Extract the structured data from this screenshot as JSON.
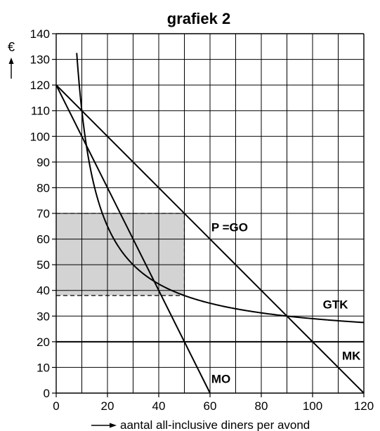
{
  "chart_data": {
    "type": "line",
    "title": "grafiek 2",
    "ylabel": "€",
    "xlabel": "aantal all-inclusive diners per avond",
    "xlim": [
      0,
      120
    ],
    "ylim": [
      0,
      140
    ],
    "x_ticks": [
      0,
      20,
      40,
      60,
      80,
      100,
      120
    ],
    "y_ticks": [
      0,
      10,
      20,
      30,
      40,
      50,
      60,
      70,
      80,
      90,
      100,
      110,
      120,
      130,
      140
    ],
    "grid": true,
    "series": [
      {
        "name": "P =GO",
        "points": [
          [
            0,
            120
          ],
          [
            120,
            0
          ]
        ]
      },
      {
        "name": "MO",
        "points": [
          [
            0,
            120
          ],
          [
            60,
            0
          ]
        ]
      },
      {
        "name": "MK",
        "points": [
          [
            0,
            20
          ],
          [
            120,
            20
          ]
        ]
      },
      {
        "name": "GTK",
        "points": [
          [
            8,
            132.5
          ],
          [
            10,
            110
          ],
          [
            12,
            96.7
          ],
          [
            15,
            80
          ],
          [
            20,
            65
          ],
          [
            25,
            56
          ],
          [
            30,
            50
          ],
          [
            35,
            45.7
          ],
          [
            40,
            42.5
          ],
          [
            45,
            40
          ],
          [
            50,
            38
          ],
          [
            60,
            35
          ],
          [
            70,
            32.9
          ],
          [
            80,
            31.25
          ],
          [
            90,
            30
          ],
          [
            100,
            29
          ],
          [
            110,
            28.2
          ],
          [
            120,
            27.5
          ]
        ]
      }
    ],
    "shaded_region": {
      "x": [
        0,
        50
      ],
      "y": [
        38,
        70
      ],
      "color": "#d3d3d3"
    },
    "dashed_guides": [
      {
        "from": [
          0,
          70
        ],
        "to": [
          50,
          70
        ]
      },
      {
        "from": [
          50,
          70
        ],
        "to": [
          50,
          38
        ]
      },
      {
        "from": [
          0,
          38
        ],
        "to": [
          50,
          38
        ]
      }
    ],
    "line_color": "#000000"
  }
}
